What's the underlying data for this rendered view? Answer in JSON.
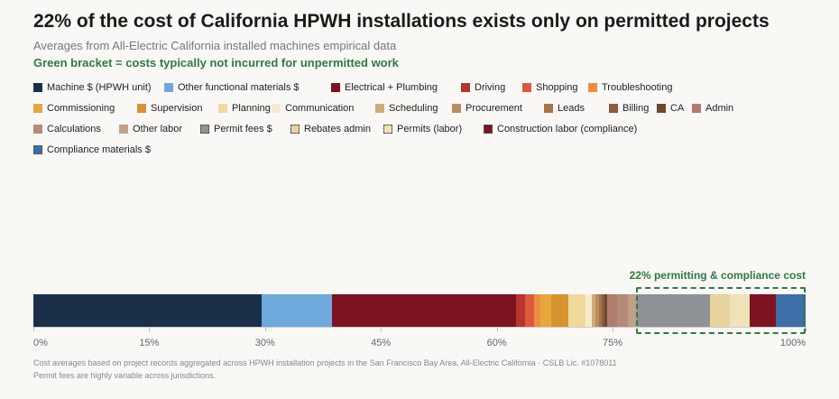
{
  "header": {
    "title": "22% of the cost of California HPWH installations exists only on permitted projects",
    "subtitle": "Averages from All-Electric California installed machines empirical data",
    "note": "Green bracket = costs typically not incurred for unpermitted work"
  },
  "bracket_label": "22% permitting & compliance cost",
  "footer": {
    "line1": "Cost averages based on project records aggregated across HPWH installation projects in the San Francisco Bay Area. All-Electric California · CSLB Lic. #1078011",
    "line2": "Permit fees are highly variable across jurisdictions."
  },
  "chart_data": {
    "type": "bar",
    "orientation": "horizontal-stacked",
    "xlim": [
      0,
      100
    ],
    "ticks": [
      "0%",
      "15%",
      "30%",
      "45%",
      "60%",
      "75%",
      "100%"
    ],
    "tick_values": [
      0,
      15,
      30,
      45,
      60,
      75,
      100
    ],
    "legend_placement": "top",
    "bracket_range": [
      78,
      100
    ],
    "series": [
      {
        "name": "Machine $ (HPWH unit)",
        "value": 29.6,
        "color": "#1a3049",
        "hatched": false
      },
      {
        "name": "Other functional materials $",
        "value": 9.1,
        "color": "#6fa8dc",
        "hatched": false
      },
      {
        "name": "Electrical + Plumbing",
        "value": 23.8,
        "color": "#7d1320",
        "hatched": false
      },
      {
        "name": "Driving",
        "value": 1.2,
        "color": "#b8352f",
        "hatched": false
      },
      {
        "name": "Shopping",
        "value": 1.1,
        "color": "#dc5a3a",
        "hatched": false
      },
      {
        "name": "Troubleshooting",
        "value": 0.8,
        "color": "#ee8c45",
        "hatched": false
      },
      {
        "name": "Commissioning",
        "value": 1.5,
        "color": "#e6a83d",
        "hatched": false
      },
      {
        "name": "Supervision",
        "value": 2.2,
        "color": "#d89331",
        "hatched": false
      },
      {
        "name": "Planning",
        "value": 2.2,
        "color": "#f1d99c",
        "hatched": false
      },
      {
        "name": "Communication",
        "value": 0.8,
        "color": "#f4ebcd",
        "hatched": false
      },
      {
        "name": "Scheduling",
        "value": 0.5,
        "color": "#cfab78",
        "hatched": false
      },
      {
        "name": "Procurement",
        "value": 0.4,
        "color": "#b98d60",
        "hatched": false
      },
      {
        "name": "Leads",
        "value": 0.4,
        "color": "#a57548",
        "hatched": false
      },
      {
        "name": "Billing",
        "value": 0.4,
        "color": "#8c5c3e",
        "hatched": false
      },
      {
        "name": "CA",
        "value": 0.3,
        "color": "#6b4a30",
        "hatched": false
      },
      {
        "name": "Admin",
        "value": 1.3,
        "color": "#b07c70",
        "hatched": false
      },
      {
        "name": "Calculations",
        "value": 1.4,
        "color": "#b48b78",
        "hatched": false
      },
      {
        "name": "Other labor",
        "value": 1.1,
        "color": "#c2a08a",
        "hatched": false
      },
      {
        "name": "Permit fees $",
        "value": 9.5,
        "color": "#8f9296",
        "hatched": true
      },
      {
        "name": "Rebates admin",
        "value": 2.6,
        "color": "#e6d49c",
        "hatched": true
      },
      {
        "name": "Permits (labor)",
        "value": 2.6,
        "color": "#f0e2b8",
        "hatched": true
      },
      {
        "name": "Construction labor (compliance)",
        "value": 3.4,
        "color": "#7d1320",
        "hatched": true
      },
      {
        "name": "Compliance materials $",
        "value": 3.8,
        "color": "#3c6ea8",
        "hatched": true
      }
    ]
  }
}
